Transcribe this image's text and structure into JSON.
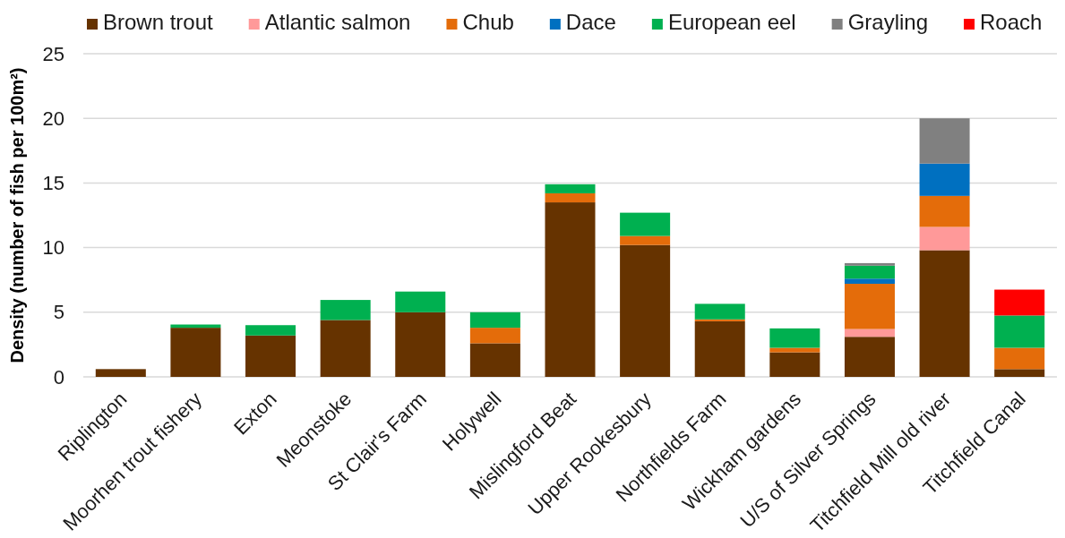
{
  "chart_data": {
    "type": "bar",
    "stacked": true,
    "ylabel": "Density (number of fish per 100m²)",
    "categories": [
      "Riplington",
      "Moorhen trout fishery",
      "Exton",
      "Meonstoke",
      "St Clair's Farm",
      "Holywell",
      "Mislingford Beat",
      "Upper Rookesbury",
      "Northfields Farm",
      "Wickham gardens",
      "U/S of Silver Springs",
      "Titchfield Mill old river",
      "Titchfield Canal"
    ],
    "series": [
      {
        "name": "Brown trout",
        "color": "#663300",
        "values": [
          0.6,
          3.8,
          3.2,
          4.4,
          5.0,
          2.6,
          13.5,
          10.2,
          4.3,
          1.9,
          3.1,
          9.8,
          0.6
        ]
      },
      {
        "name": "Atlantic salmon",
        "color": "#ff9999",
        "values": [
          null,
          null,
          null,
          null,
          null,
          null,
          null,
          null,
          null,
          null,
          0.6,
          1.8,
          null
        ]
      },
      {
        "name": "Chub",
        "color": "#e46c0a",
        "values": [
          null,
          null,
          null,
          null,
          null,
          1.2,
          0.7,
          0.7,
          0.15,
          0.35,
          3.5,
          2.4,
          1.65
        ]
      },
      {
        "name": "Dace",
        "color": "#0070c0",
        "values": [
          null,
          null,
          null,
          null,
          null,
          null,
          null,
          null,
          null,
          null,
          0.4,
          2.5,
          null
        ]
      },
      {
        "name": "European eel",
        "color": "#00b050",
        "values": [
          null,
          0.25,
          0.8,
          1.55,
          1.6,
          1.2,
          0.7,
          1.8,
          1.2,
          1.5,
          1.0,
          null,
          2.5
        ]
      },
      {
        "name": "Grayling",
        "color": "#808080",
        "values": [
          null,
          null,
          null,
          null,
          null,
          null,
          null,
          null,
          null,
          null,
          0.2,
          3.5,
          null
        ]
      },
      {
        "name": "Roach",
        "color": "#ff0000",
        "values": [
          null,
          null,
          null,
          null,
          null,
          null,
          null,
          null,
          null,
          null,
          null,
          null,
          2.0
        ]
      }
    ],
    "ylim": [
      0,
      25
    ],
    "yticks": [
      0,
      5,
      10,
      15,
      20,
      25
    ],
    "grid": "y",
    "legend": "top"
  }
}
